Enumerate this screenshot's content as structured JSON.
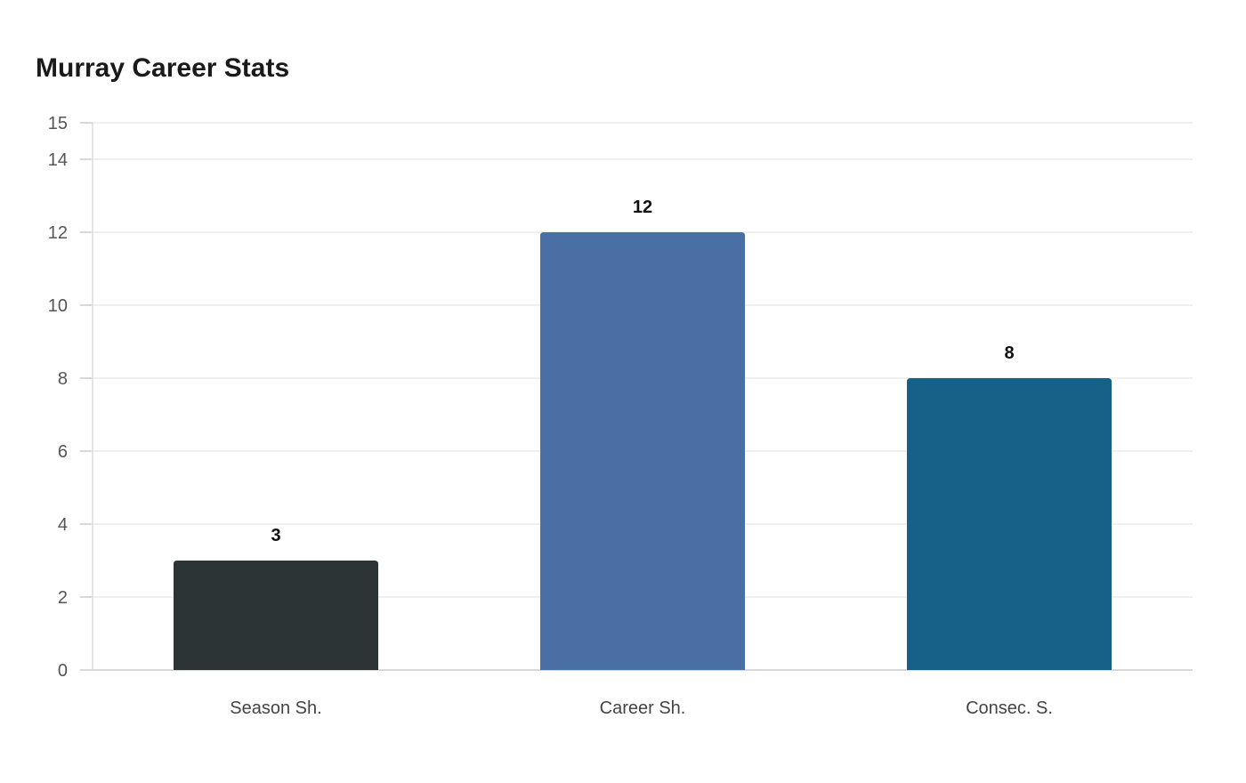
{
  "chart_data": {
    "type": "bar",
    "title": "Murray Career Stats",
    "categories": [
      "Season Sh.",
      "Career Sh.",
      "Consec. S."
    ],
    "values": [
      3,
      12,
      8
    ],
    "colors": [
      "#2d3436",
      "#4a6fa5",
      "#166088"
    ],
    "yticks": [
      0,
      2,
      4,
      6,
      8,
      10,
      12,
      14,
      15
    ],
    "ylim": [
      0,
      15
    ],
    "xlabel": "",
    "ylabel": "",
    "grid": true,
    "data_labels": true
  }
}
